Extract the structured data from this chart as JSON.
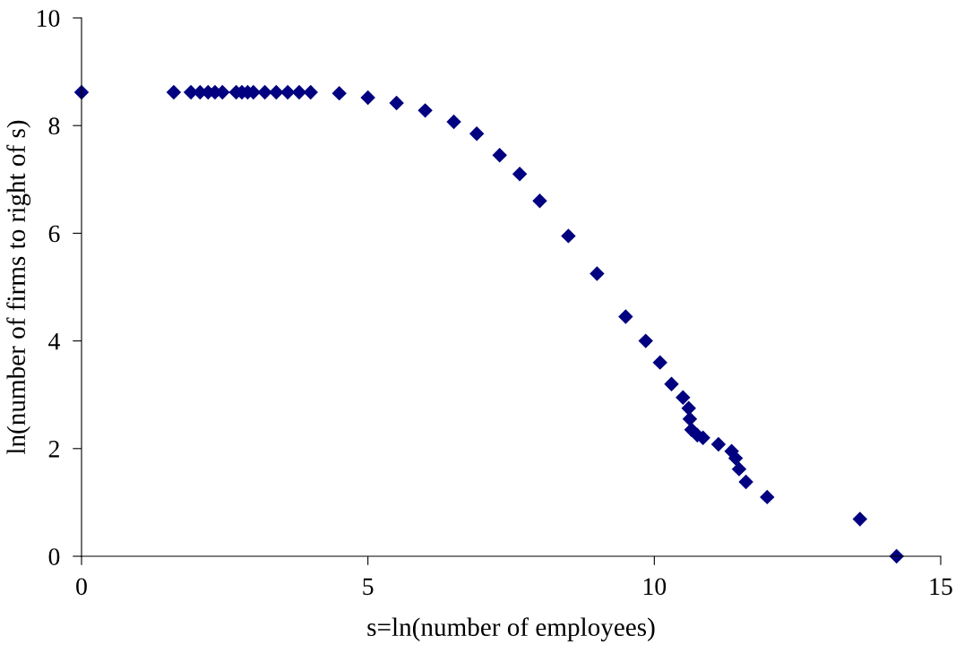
{
  "chart_data": {
    "type": "scatter",
    "xlabel": "s=ln(number of employees)",
    "ylabel": "ln(number of firms to right of s)",
    "xlim": [
      0,
      15
    ],
    "ylim": [
      0,
      10
    ],
    "xticks": [
      0,
      5,
      10,
      15
    ],
    "yticks": [
      0,
      2,
      4,
      6,
      8,
      10
    ],
    "grid": false,
    "legend": false,
    "marker": "diamond",
    "series": [
      {
        "color": "#000080",
        "x": [
          0,
          1.61,
          1.91,
          2.07,
          2.21,
          2.33,
          2.46,
          2.7,
          2.8,
          2.9,
          3.0,
          3.2,
          3.4,
          3.6,
          3.8,
          4.0,
          4.5,
          5.0,
          5.5,
          6.0,
          6.5,
          6.9,
          7.3,
          7.65,
          8.0,
          8.5,
          9.0,
          9.5,
          9.85,
          10.1,
          10.3,
          10.5,
          10.6,
          10.62,
          10.65,
          10.75,
          10.85,
          11.12,
          11.35,
          11.42,
          11.48,
          11.6,
          11.97,
          13.59,
          14.23
        ],
        "values": [
          8.62,
          8.62,
          8.62,
          8.62,
          8.62,
          8.62,
          8.62,
          8.62,
          8.62,
          8.62,
          8.62,
          8.62,
          8.62,
          8.62,
          8.62,
          8.62,
          8.6,
          8.52,
          8.42,
          8.28,
          8.07,
          7.85,
          7.45,
          7.1,
          6.6,
          5.95,
          5.25,
          4.45,
          4.0,
          3.6,
          3.2,
          2.95,
          2.75,
          2.55,
          2.35,
          2.25,
          2.2,
          2.08,
          1.95,
          1.82,
          1.62,
          1.38,
          1.1,
          0.69,
          0
        ]
      }
    ]
  }
}
